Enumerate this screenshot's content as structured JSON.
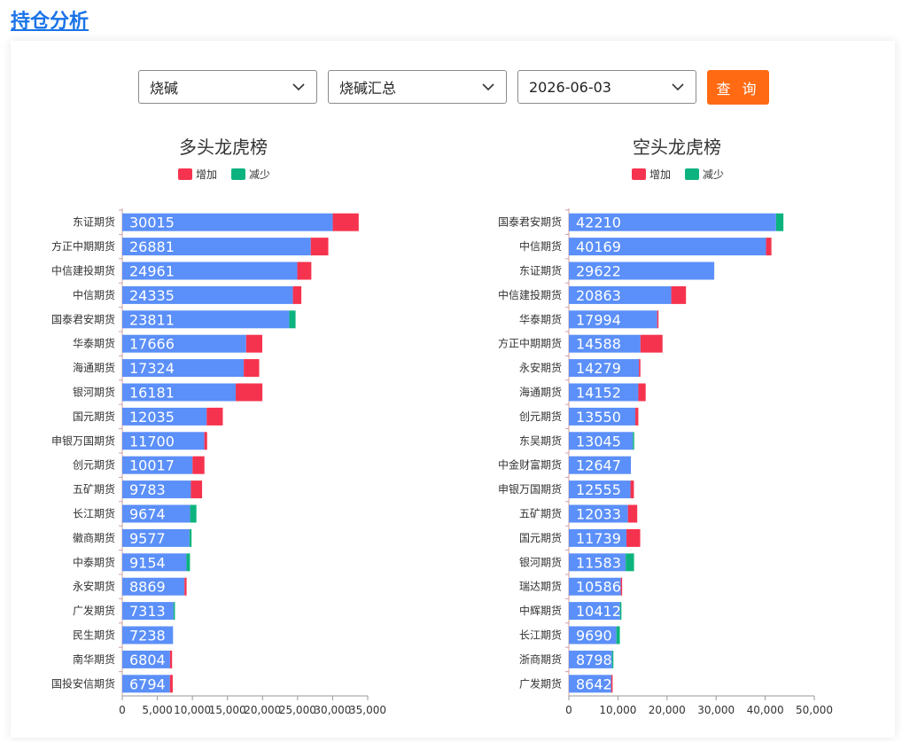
{
  "page_title": "持仓分析",
  "filters": {
    "product": "烧碱",
    "contract": "烧碱汇总",
    "date": "2026-06-03",
    "query_label": "查 询"
  },
  "colors": {
    "bar": "#5b8ff9",
    "increase": "#f6334e",
    "decrease": "#0db37e"
  },
  "chart_data": [
    {
      "type": "bar",
      "orientation": "horizontal",
      "stacked": true,
      "title": "多头龙虎榜",
      "legend": [
        "增加",
        "减少"
      ],
      "legend_position": "top-center",
      "xlim": [
        0,
        35000
      ],
      "xticks": [
        "0",
        "5,000",
        "10,000",
        "15,000",
        "20,000",
        "25,000",
        "30,000",
        "35,000"
      ],
      "categories": [
        "东证期货",
        "方正中期期货",
        "中信建投期货",
        "中信期货",
        "国泰君安期货",
        "华泰期货",
        "海通期货",
        "银河期货",
        "国元期货",
        "申银万国期货",
        "创元期货",
        "五矿期货",
        "长江期货",
        "徽商期货",
        "中泰期货",
        "永安期货",
        "广发期货",
        "民生期货",
        "南华期货",
        "国投安信期货"
      ],
      "values": [
        30015,
        26881,
        24961,
        24335,
        23811,
        17666,
        17324,
        16181,
        12035,
        11700,
        10017,
        9783,
        9674,
        9577,
        9154,
        8869,
        7313,
        7238,
        6804,
        6794
      ],
      "change": [
        3700,
        2500,
        2000,
        1200,
        -900,
        2300,
        2200,
        3800,
        2300,
        400,
        1700,
        1600,
        -900,
        -300,
        -500,
        300,
        -200,
        0,
        300,
        400
      ]
    },
    {
      "type": "bar",
      "orientation": "horizontal",
      "stacked": true,
      "title": "空头龙虎榜",
      "legend": [
        "增加",
        "减少"
      ],
      "legend_position": "top-center",
      "xlim": [
        0,
        50000
      ],
      "xticks": [
        "0",
        "10,000",
        "20,000",
        "30,000",
        "40,000",
        "50,000"
      ],
      "categories": [
        "国泰君安期货",
        "中信期货",
        "东证期货",
        "中信建投期货",
        "华泰期货",
        "方正中期期货",
        "永安期货",
        "海通期货",
        "创元期货",
        "东吴期货",
        "中金财富期货",
        "申银万国期货",
        "五矿期货",
        "国元期货",
        "银河期货",
        "瑞达期货",
        "中辉期货",
        "长江期货",
        "浙商期货",
        "广发期货"
      ],
      "values": [
        42210,
        40169,
        29622,
        20863,
        17994,
        14588,
        14279,
        14152,
        13550,
        13045,
        12647,
        12555,
        12033,
        11739,
        11583,
        10586,
        10412,
        9690,
        8798,
        8642
      ],
      "change": [
        -1500,
        1100,
        0,
        3000,
        200,
        4500,
        300,
        1500,
        600,
        -200,
        0,
        700,
        1900,
        2800,
        -1700,
        200,
        -300,
        -700,
        -200,
        100
      ]
    }
  ]
}
